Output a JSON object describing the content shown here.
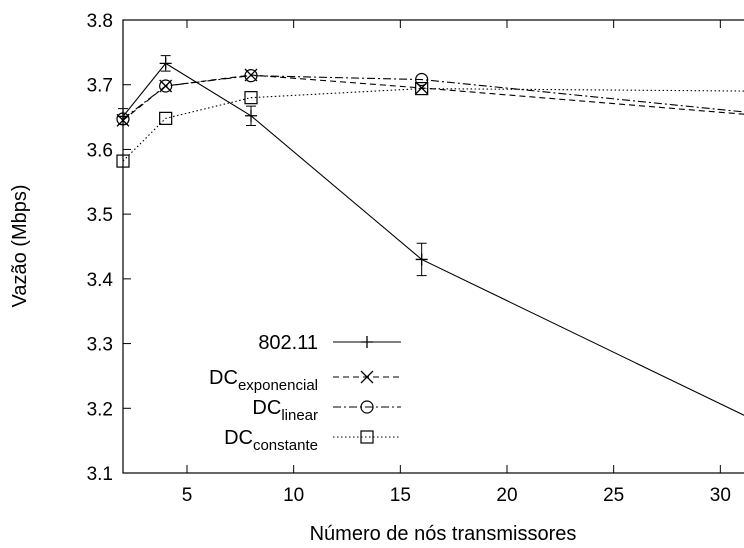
{
  "chart_data": {
    "type": "line",
    "title": "",
    "xlabel": "Número de nós transmissores",
    "ylabel": "Vazão (Mbps)",
    "xlim": [
      2,
      32
    ],
    "ylim": [
      3.1,
      3.8
    ],
    "xticks": [
      5,
      10,
      15,
      20,
      25,
      30
    ],
    "yticks": [
      3.1,
      3.2,
      3.3,
      3.4,
      3.5,
      3.6,
      3.7,
      3.8
    ],
    "x": [
      2,
      4,
      8,
      16,
      32
    ],
    "grid": false,
    "legend_position": "bottom-left",
    "series": [
      {
        "name": "802.11",
        "legend_main": "802.11",
        "legend_sub": "",
        "marker": "plus",
        "dash": "solid",
        "values": [
          3.651,
          3.733,
          3.652,
          3.43,
          3.175
        ],
        "errors": [
          0.012,
          0.012,
          0.015,
          0.025,
          0.0
        ]
      },
      {
        "name": "DCexponencial",
        "legend_main": "DC",
        "legend_sub": "exponencial",
        "marker": "x",
        "dash": "dashed",
        "values": [
          3.645,
          3.698,
          3.715,
          3.695,
          3.652
        ],
        "errors": [
          0.0,
          0.0,
          0.0,
          0.0,
          0.0
        ]
      },
      {
        "name": "DClinear",
        "legend_main": "DC",
        "legend_sub": "linear",
        "marker": "circle",
        "dash": "dashdot",
        "values": [
          3.647,
          3.698,
          3.714,
          3.708,
          3.655
        ],
        "errors": [
          0.0,
          0.0,
          0.0,
          0.0,
          0.0
        ]
      },
      {
        "name": "DCconstante",
        "legend_main": "DC",
        "legend_sub": "constante",
        "marker": "square",
        "dash": "dotted",
        "values": [
          3.582,
          3.648,
          3.68,
          3.694,
          3.69
        ],
        "errors": [
          0.0,
          0.0,
          0.0,
          0.0,
          0.0
        ]
      }
    ]
  }
}
